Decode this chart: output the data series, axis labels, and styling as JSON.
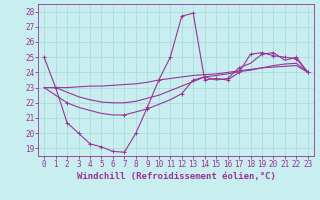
{
  "bg_color": "#c8eef0",
  "grid_color": "#a8d8da",
  "line_color": "#993399",
  "xlabel": "Windchill (Refroidissement éolien,°C)",
  "xlabel_fontsize": 6.5,
  "tick_fontsize": 5.5,
  "xlim": [
    -0.5,
    23.5
  ],
  "ylim": [
    18.5,
    28.5
  ],
  "yticks": [
    19,
    20,
    21,
    22,
    23,
    24,
    25,
    26,
    27,
    28
  ],
  "xticks": [
    0,
    1,
    2,
    3,
    4,
    5,
    6,
    7,
    8,
    9,
    10,
    11,
    12,
    13,
    14,
    15,
    16,
    17,
    18,
    19,
    20,
    21,
    22,
    23
  ],
  "line1_x": [
    0,
    1,
    2,
    3,
    4,
    5,
    6,
    7,
    8,
    9,
    10,
    11,
    12,
    13,
    14,
    15,
    16,
    17,
    18,
    19,
    20,
    21,
    22,
    23
  ],
  "line1_y": [
    25.0,
    23.0,
    20.7,
    20.0,
    19.3,
    19.1,
    18.8,
    18.75,
    20.0,
    21.7,
    23.5,
    25.0,
    27.7,
    27.9,
    23.5,
    23.6,
    23.5,
    24.0,
    25.2,
    25.3,
    25.1,
    25.0,
    24.9,
    24.0
  ],
  "line1_markers_x": [
    0,
    1,
    2,
    3,
    4,
    5,
    6,
    7,
    8,
    9,
    10,
    11,
    12,
    13,
    14,
    15,
    16,
    17,
    18,
    19,
    20,
    21,
    22,
    23
  ],
  "line1_markers_y": [
    25.0,
    23.0,
    20.7,
    20.0,
    19.3,
    19.1,
    18.8,
    18.75,
    20.0,
    21.7,
    23.5,
    25.0,
    27.7,
    27.9,
    23.5,
    23.6,
    23.5,
    24.0,
    25.2,
    25.3,
    25.1,
    25.0,
    24.9,
    24.0
  ],
  "line2_x": [
    0,
    2,
    3,
    4,
    5,
    6,
    7,
    8,
    9,
    10,
    11,
    12,
    13,
    14,
    15,
    16,
    17,
    18,
    19,
    20,
    21,
    22,
    23
  ],
  "line2_y": [
    23.0,
    22.0,
    21.7,
    21.5,
    21.3,
    21.2,
    21.2,
    21.4,
    21.6,
    21.9,
    22.2,
    22.6,
    23.5,
    23.7,
    23.5,
    23.6,
    24.3,
    24.6,
    25.2,
    25.3,
    24.8,
    25.0,
    24.0
  ],
  "line2_markers_x": [
    2,
    7,
    9,
    12,
    13,
    14,
    16,
    17,
    19,
    20,
    22,
    23
  ],
  "line2_markers_y": [
    22.0,
    21.2,
    21.6,
    22.6,
    23.5,
    23.7,
    23.6,
    24.3,
    25.2,
    25.3,
    25.0,
    24.0
  ],
  "line3_x": [
    0,
    1,
    2,
    3,
    4,
    5,
    6,
    7,
    8,
    9,
    10,
    11,
    12,
    13,
    14,
    15,
    16,
    17,
    18,
    19,
    20,
    21,
    22,
    23
  ],
  "line3_y": [
    23.0,
    23.0,
    23.0,
    23.05,
    23.1,
    23.1,
    23.15,
    23.2,
    23.25,
    23.35,
    23.5,
    23.6,
    23.7,
    23.8,
    23.85,
    23.9,
    24.0,
    24.1,
    24.2,
    24.3,
    24.35,
    24.4,
    24.45,
    24.0
  ],
  "line4_x": [
    0,
    1,
    2,
    3,
    4,
    5,
    6,
    7,
    8,
    9,
    10,
    11,
    12,
    13,
    14,
    15,
    16,
    17,
    18,
    19,
    20,
    21,
    22,
    23
  ],
  "line4_y": [
    23.0,
    23.0,
    22.7,
    22.4,
    22.2,
    22.05,
    22.0,
    22.0,
    22.1,
    22.3,
    22.5,
    22.8,
    23.1,
    23.4,
    23.7,
    23.8,
    23.9,
    24.05,
    24.15,
    24.3,
    24.45,
    24.55,
    24.6,
    24.0
  ]
}
